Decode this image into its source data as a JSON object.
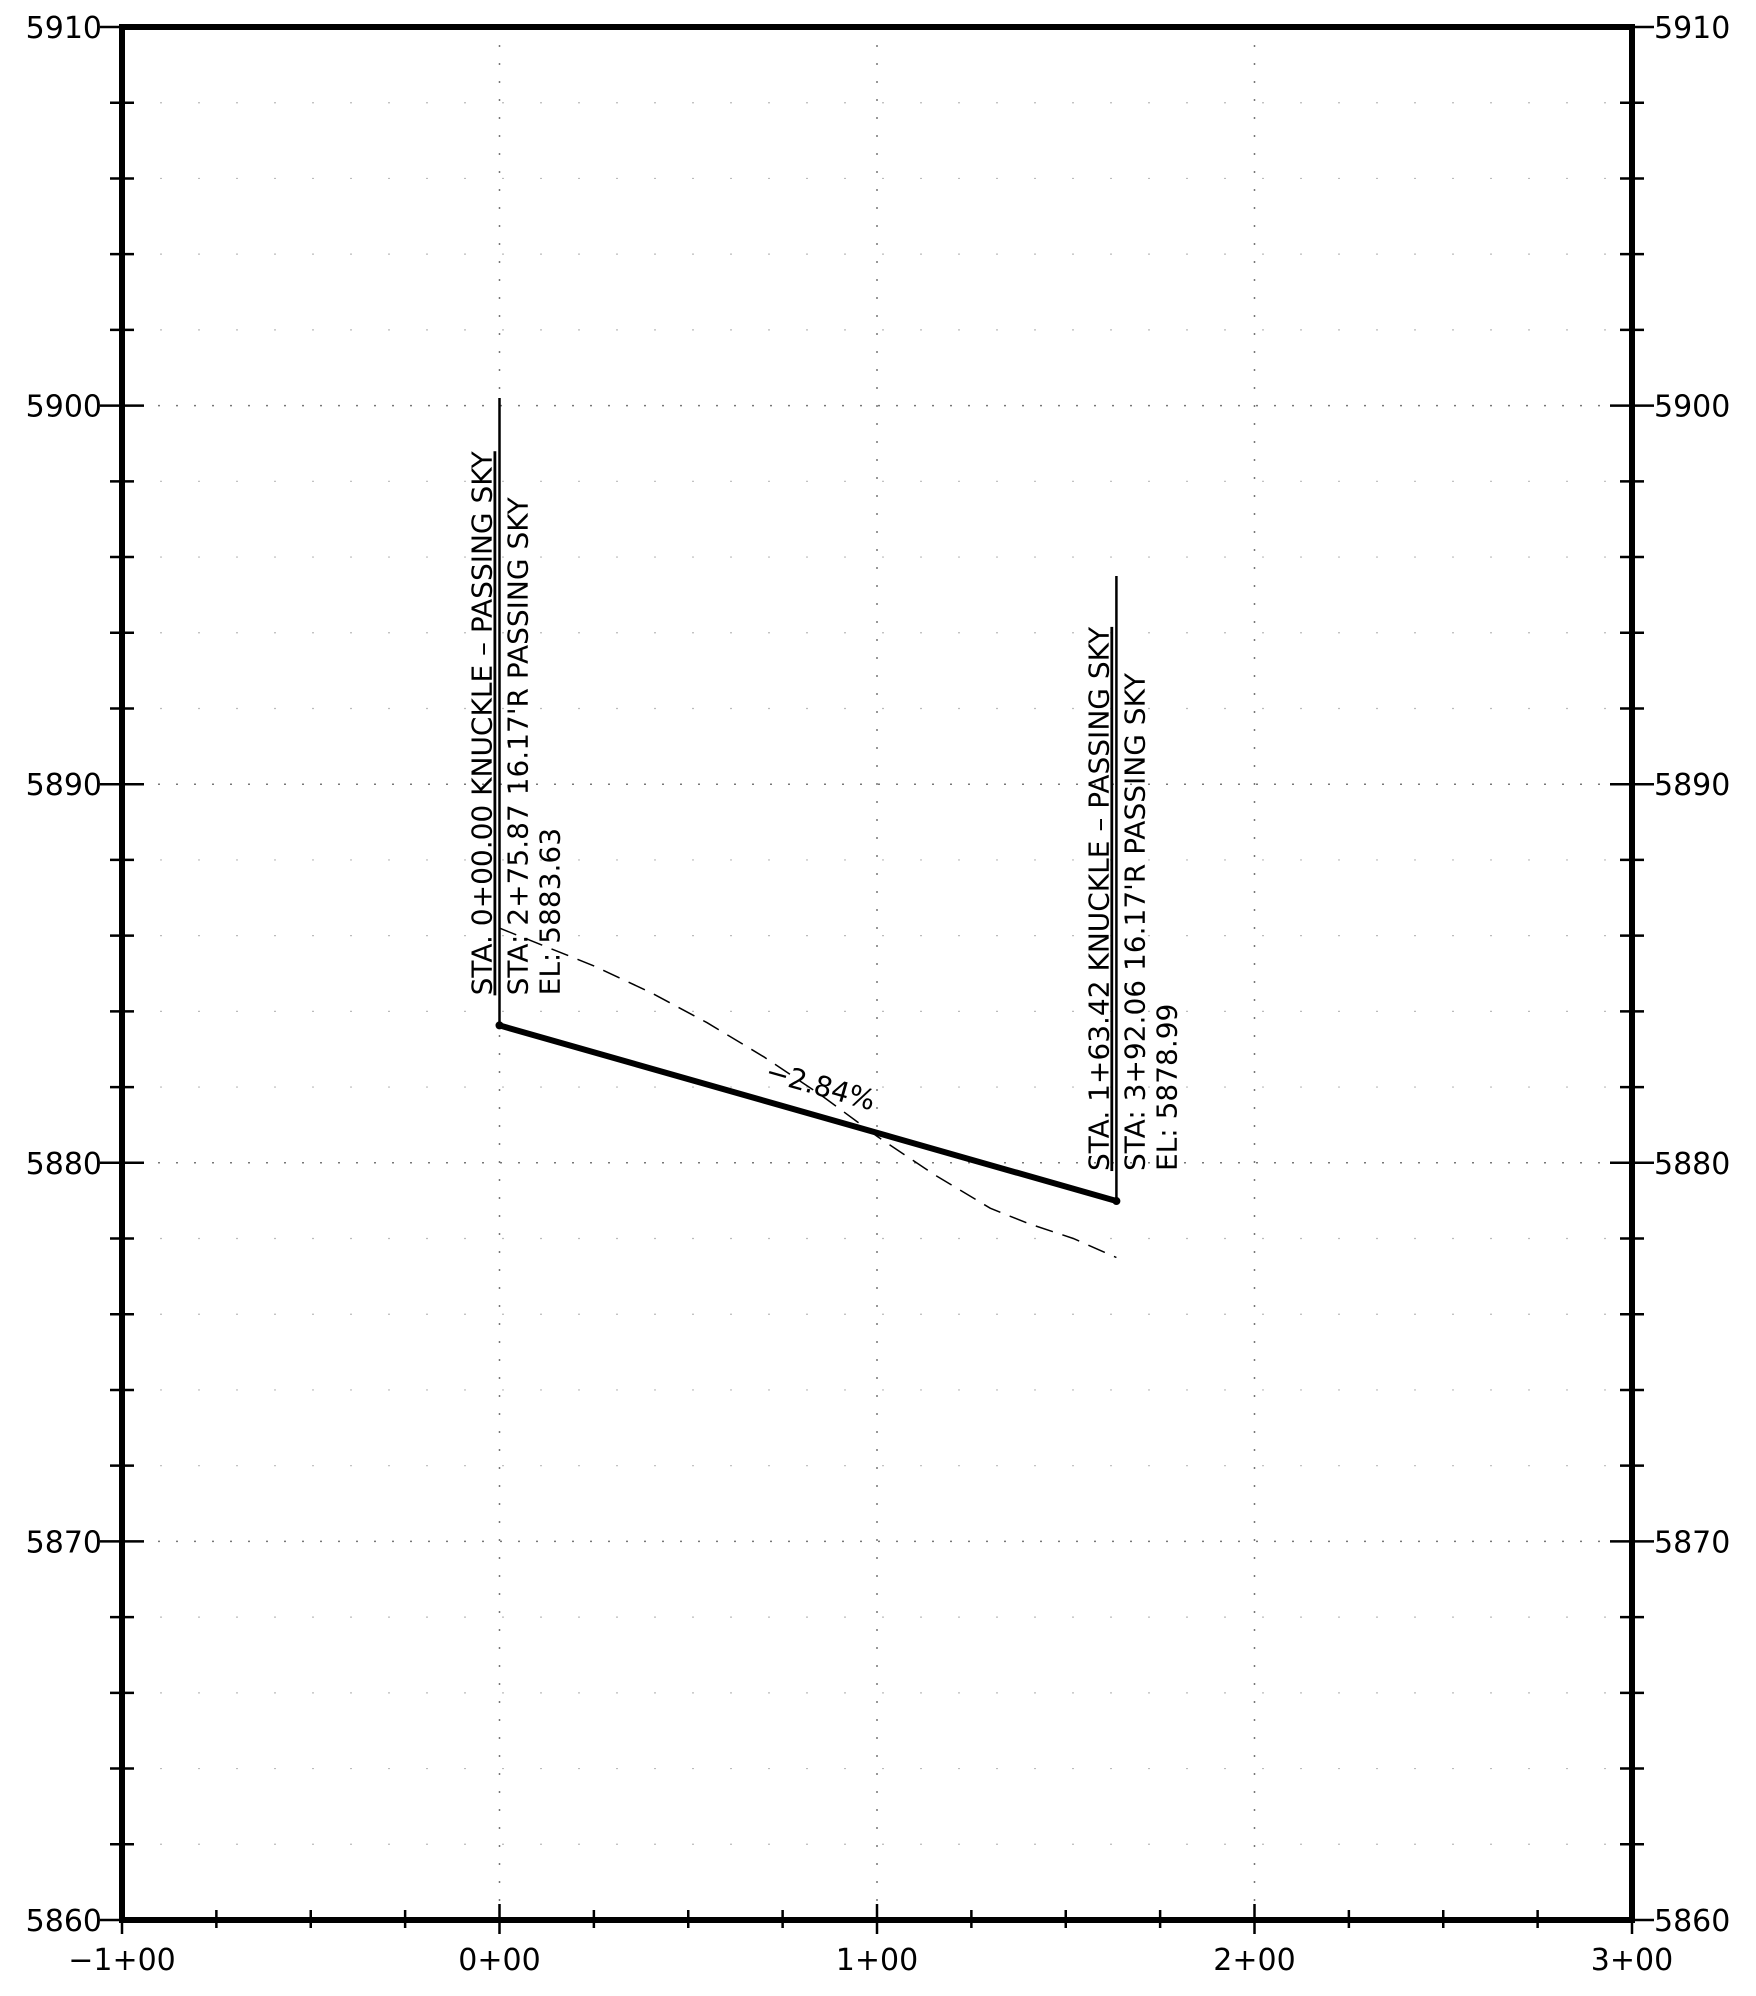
{
  "chart_data": {
    "type": "line",
    "title": "",
    "xlabel": "",
    "ylabel": "",
    "xlim": [
      -100,
      300
    ],
    "ylim": [
      5860,
      5910
    ],
    "grid": true,
    "x_ticks": [
      -100,
      0,
      100,
      200,
      300
    ],
    "x_tick_labels": [
      "−1+00",
      "0+00",
      "1+00",
      "2+00",
      "3+00"
    ],
    "y_ticks": [
      5860,
      5870,
      5880,
      5890,
      5900,
      5910
    ],
    "y_tick_labels": [
      "5860",
      "5870",
      "5880",
      "5890",
      "5900",
      "5910"
    ],
    "series": [
      {
        "style": "solid-thick",
        "points": [
          [
            0,
            5883.63
          ],
          [
            163.42,
            5878.99
          ]
        ]
      },
      {
        "style": "dashed",
        "points": [
          [
            0,
            5886.2
          ],
          [
            10,
            5885.8
          ],
          [
            25,
            5885.2
          ],
          [
            40,
            5884.5
          ],
          [
            55,
            5883.7
          ],
          [
            70,
            5882.8
          ],
          [
            85,
            5881.8
          ],
          [
            100,
            5880.7
          ],
          [
            115,
            5879.7
          ],
          [
            130,
            5878.8
          ],
          [
            140,
            5878.4
          ],
          [
            152,
            5878.0
          ],
          [
            163.42,
            5877.5
          ]
        ]
      }
    ],
    "annotations": [
      {
        "station": 0,
        "top_elevation": 5900.2,
        "lines": [
          "STA. 0+00.00 KNUCKLE – PASSING SKY",
          "STA: 2+75.87 16.17'R PASSING SKY",
          "EL: 5883.63"
        ]
      },
      {
        "station": 163.42,
        "top_elevation": 5895.5,
        "lines": [
          "STA. 1+63.42 KNUCKLE – PASSING SKY",
          "STA: 3+92.06 16.17'R PASSING SKY",
          "EL: 5878.99"
        ]
      }
    ],
    "grade_label": "−2.84%"
  }
}
